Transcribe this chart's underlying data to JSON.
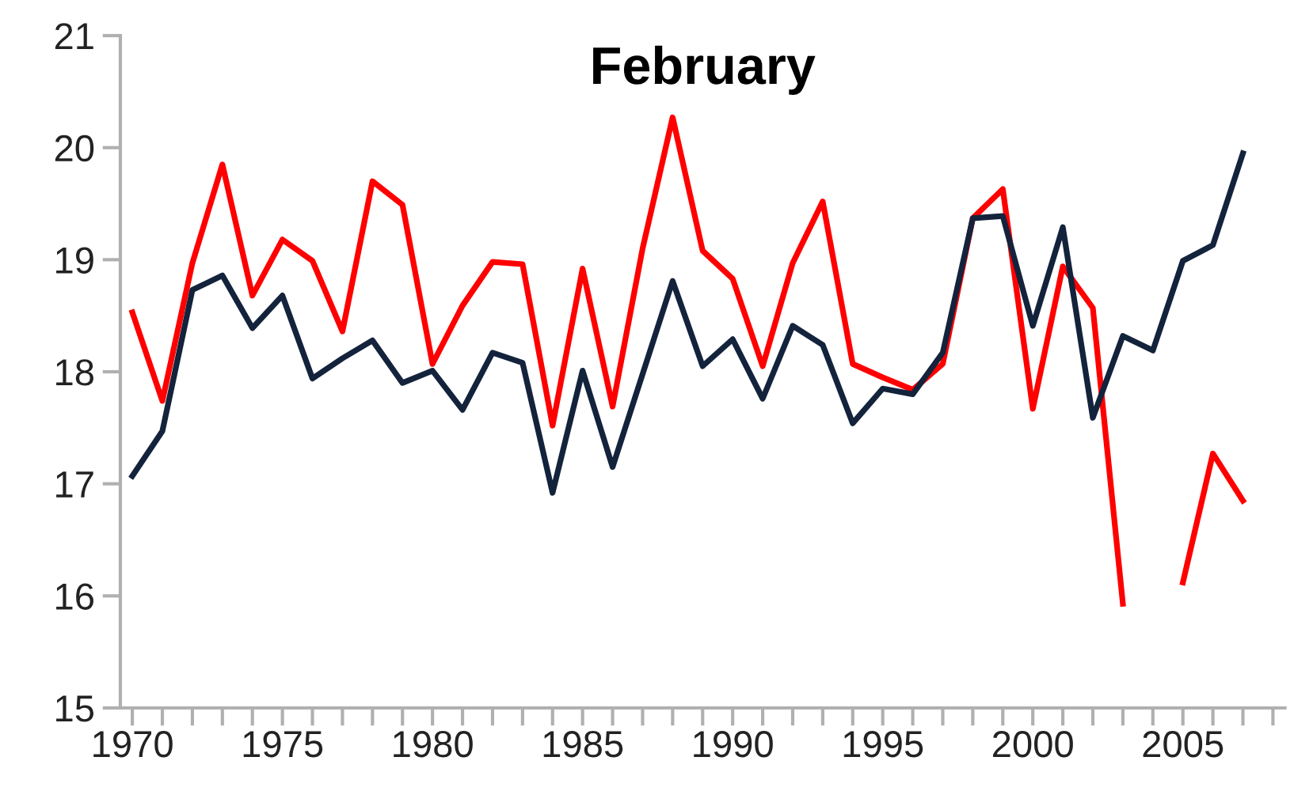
{
  "chart_data": {
    "type": "line",
    "title": "February",
    "x": [
      1970,
      1971,
      1972,
      1973,
      1974,
      1975,
      1976,
      1977,
      1978,
      1979,
      1980,
      1981,
      1982,
      1983,
      1984,
      1985,
      1986,
      1987,
      1988,
      1989,
      1990,
      1991,
      1992,
      1993,
      1994,
      1995,
      1996,
      1997,
      1998,
      1999,
      2000,
      2001,
      2002,
      2003,
      2004,
      2005,
      2006,
      2007
    ],
    "series": [
      {
        "color": "#ff0000",
        "values": [
          18.53,
          17.74,
          18.97,
          19.85,
          18.68,
          19.18,
          18.99,
          18.36,
          19.7,
          19.49,
          18.07,
          18.59,
          18.98,
          18.96,
          17.52,
          18.92,
          17.69,
          19.1,
          20.27,
          19.08,
          18.83,
          18.05,
          18.97,
          19.52,
          18.07,
          17.95,
          17.84,
          18.07,
          19.37,
          19.63,
          17.67,
          18.94,
          18.57,
          15.93,
          null,
          16.12,
          17.27,
          16.85
        ]
      },
      {
        "color": "#14233c",
        "values": [
          17.07,
          17.47,
          18.73,
          18.86,
          18.39,
          18.68,
          17.94,
          18.12,
          18.28,
          17.9,
          18.01,
          17.66,
          18.17,
          18.08,
          16.92,
          18.01,
          17.15,
          17.98,
          18.81,
          18.05,
          18.29,
          17.76,
          18.41,
          18.24,
          17.54,
          17.85,
          17.8,
          18.17,
          19.37,
          19.39,
          18.41,
          19.29,
          17.59,
          18.32,
          18.19,
          18.99,
          19.13,
          19.95
        ]
      }
    ],
    "xlim": [
      1969.6,
      2008.4
    ],
    "xticks": [
      1970,
      {
        "value": 1971,
        "label": null
      },
      {
        "value": 1972,
        "label": null
      },
      {
        "value": 1973,
        "label": null
      },
      {
        "value": 1974,
        "label": null
      },
      1975,
      {
        "value": 1976,
        "label": null
      },
      {
        "value": 1977,
        "label": null
      },
      {
        "value": 1978,
        "label": null
      },
      {
        "value": 1979,
        "label": null
      },
      1980,
      {
        "value": 1981,
        "label": null
      },
      {
        "value": 1982,
        "label": null
      },
      {
        "value": 1983,
        "label": null
      },
      {
        "value": 1984,
        "label": null
      },
      1985,
      {
        "value": 1986,
        "label": null
      },
      {
        "value": 1987,
        "label": null
      },
      {
        "value": 1988,
        "label": null
      },
      {
        "value": 1989,
        "label": null
      },
      1990,
      {
        "value": 1991,
        "label": null
      },
      {
        "value": 1992,
        "label": null
      },
      {
        "value": 1993,
        "label": null
      },
      {
        "value": 1994,
        "label": null
      },
      1995,
      {
        "value": 1996,
        "label": null
      },
      {
        "value": 1997,
        "label": null
      },
      {
        "value": 1998,
        "label": null
      },
      {
        "value": 1999,
        "label": null
      },
      2000,
      {
        "value": 2001,
        "label": null
      },
      {
        "value": 2002,
        "label": null
      },
      {
        "value": 2003,
        "label": null
      },
      {
        "value": 2004,
        "label": null
      },
      2005,
      {
        "value": 2006,
        "label": null
      },
      {
        "value": 2007,
        "label": null
      },
      {
        "value": 2008,
        "label": null
      }
    ],
    "ylim": [
      15,
      21
    ],
    "yticks": [
      15,
      16,
      17,
      18,
      19,
      20,
      21
    ],
    "grid": false,
    "marker": "none",
    "line_style": "solid"
  }
}
